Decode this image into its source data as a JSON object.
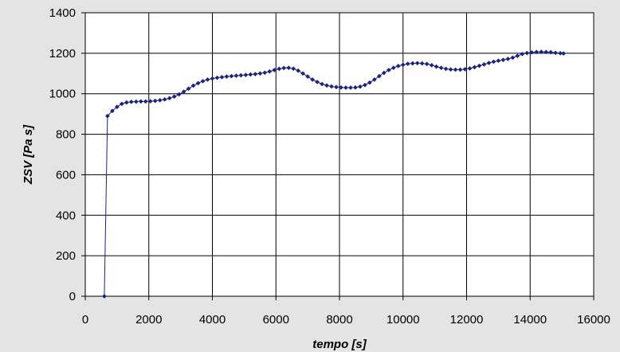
{
  "chart_data": {
    "type": "line",
    "title": "",
    "xlabel": "tempo  [s]",
    "ylabel": "ZSV  [Pa s]",
    "xlim": [
      0,
      16000
    ],
    "ylim": [
      0,
      1400
    ],
    "x_ticks": [
      0,
      2000,
      4000,
      6000,
      8000,
      10000,
      12000,
      14000,
      16000
    ],
    "y_ticks": [
      0,
      200,
      400,
      600,
      800,
      1000,
      1200,
      1400
    ],
    "grid": true,
    "legend": "none",
    "series": [
      {
        "color": "#1a237e",
        "marker": "diamond",
        "points": [
          [
            600,
            0
          ],
          [
            700,
            890
          ],
          [
            850,
            915
          ],
          [
            1000,
            935
          ],
          [
            1150,
            950
          ],
          [
            1300,
            957
          ],
          [
            1450,
            960
          ],
          [
            1600,
            961
          ],
          [
            1750,
            962
          ],
          [
            1900,
            962
          ],
          [
            2050,
            963
          ],
          [
            2200,
            965
          ],
          [
            2350,
            968
          ],
          [
            2500,
            972
          ],
          [
            2650,
            978
          ],
          [
            2800,
            986
          ],
          [
            2950,
            997
          ],
          [
            3100,
            1010
          ],
          [
            3250,
            1025
          ],
          [
            3400,
            1040
          ],
          [
            3550,
            1052
          ],
          [
            3700,
            1062
          ],
          [
            3850,
            1070
          ],
          [
            4000,
            1075
          ],
          [
            4150,
            1079
          ],
          [
            4300,
            1082
          ],
          [
            4450,
            1085
          ],
          [
            4600,
            1087
          ],
          [
            4750,
            1089
          ],
          [
            4900,
            1091
          ],
          [
            5050,
            1093
          ],
          [
            5200,
            1095
          ],
          [
            5350,
            1097
          ],
          [
            5500,
            1100
          ],
          [
            5650,
            1104
          ],
          [
            5800,
            1110
          ],
          [
            5950,
            1117
          ],
          [
            6100,
            1123
          ],
          [
            6250,
            1127
          ],
          [
            6400,
            1128
          ],
          [
            6550,
            1124
          ],
          [
            6700,
            1114
          ],
          [
            6850,
            1100
          ],
          [
            7000,
            1085
          ],
          [
            7150,
            1070
          ],
          [
            7300,
            1058
          ],
          [
            7450,
            1048
          ],
          [
            7600,
            1041
          ],
          [
            7750,
            1036
          ],
          [
            7900,
            1033
          ],
          [
            8050,
            1031
          ],
          [
            8200,
            1030
          ],
          [
            8350,
            1030
          ],
          [
            8500,
            1031
          ],
          [
            8650,
            1035
          ],
          [
            8800,
            1043
          ],
          [
            8950,
            1055
          ],
          [
            9100,
            1070
          ],
          [
            9250,
            1087
          ],
          [
            9400,
            1103
          ],
          [
            9550,
            1117
          ],
          [
            9700,
            1128
          ],
          [
            9850,
            1137
          ],
          [
            10000,
            1143
          ],
          [
            10150,
            1148
          ],
          [
            10300,
            1150
          ],
          [
            10450,
            1151
          ],
          [
            10600,
            1150
          ],
          [
            10750,
            1147
          ],
          [
            10900,
            1141
          ],
          [
            11050,
            1134
          ],
          [
            11200,
            1128
          ],
          [
            11350,
            1123
          ],
          [
            11500,
            1120
          ],
          [
            11650,
            1119
          ],
          [
            11800,
            1119
          ],
          [
            11950,
            1121
          ],
          [
            12100,
            1125
          ],
          [
            12250,
            1131
          ],
          [
            12400,
            1138
          ],
          [
            12550,
            1145
          ],
          [
            12700,
            1152
          ],
          [
            12850,
            1158
          ],
          [
            13000,
            1163
          ],
          [
            13150,
            1167
          ],
          [
            13300,
            1172
          ],
          [
            13450,
            1178
          ],
          [
            13600,
            1187
          ],
          [
            13750,
            1196
          ],
          [
            13900,
            1201
          ],
          [
            14050,
            1204
          ],
          [
            14200,
            1206
          ],
          [
            14350,
            1207
          ],
          [
            14500,
            1206
          ],
          [
            14650,
            1205
          ],
          [
            14800,
            1202
          ],
          [
            14950,
            1200
          ],
          [
            15050,
            1199
          ]
        ]
      }
    ]
  }
}
